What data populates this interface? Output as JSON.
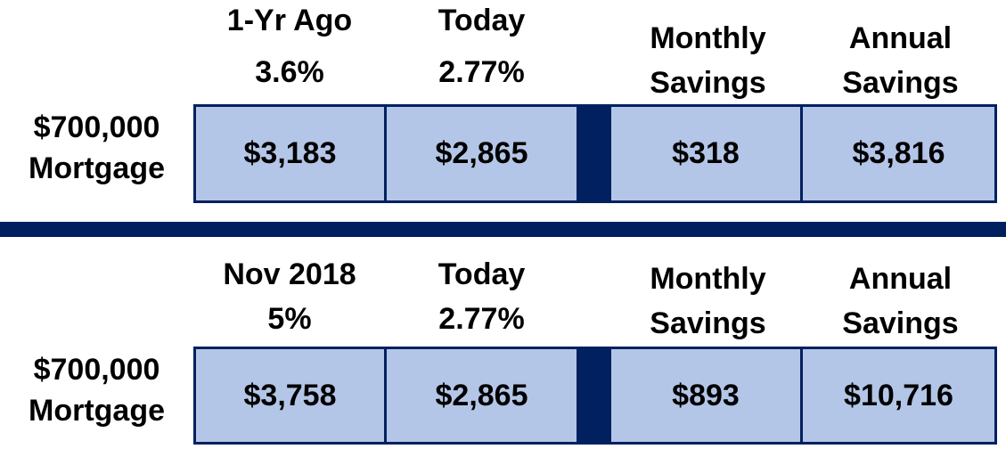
{
  "colors": {
    "navy": "#002060",
    "cell_fill": "#b4c6e7",
    "text_color": "#000000",
    "background": "#ffffff"
  },
  "tables": [
    {
      "row_label_line1": "$700,000",
      "row_label_line2": "Mortgage",
      "columns": [
        {
          "header_line1": "1-Yr Ago",
          "header_line2": "3.6%",
          "value": "$3,183"
        },
        {
          "header_line1": "Today",
          "header_line2": "2.77%",
          "value": "$2,865"
        },
        {
          "header_line1": "Monthly",
          "header_line2": "Savings",
          "value": "$318"
        },
        {
          "header_line1": "Annual",
          "header_line2": "Savings",
          "value": "$3,816"
        }
      ]
    },
    {
      "row_label_line1": "$700,000",
      "row_label_line2": "Mortgage",
      "columns": [
        {
          "header_line1": "Nov 2018",
          "header_line2": "5%",
          "value": "$3,758"
        },
        {
          "header_line1": "Today",
          "header_line2": "2.77%",
          "value": "$2,865"
        },
        {
          "header_line1": "Monthly",
          "header_line2": "Savings",
          "value": "$893"
        },
        {
          "header_line1": "Annual",
          "header_line2": "Savings",
          "value": "$10,716"
        }
      ]
    }
  ]
}
